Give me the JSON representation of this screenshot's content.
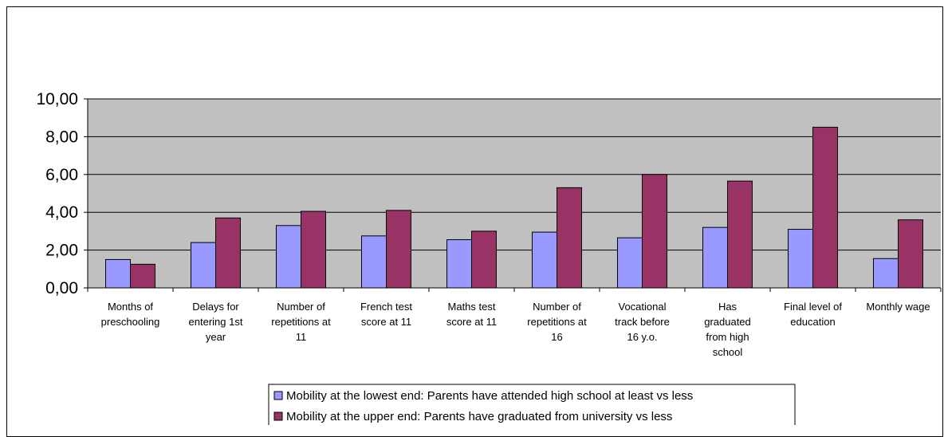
{
  "chart_data": {
    "type": "bar",
    "categories": [
      [
        "Months of",
        "preschooling"
      ],
      [
        "Delays for",
        "entering 1st",
        "year"
      ],
      [
        "Number of",
        "repetitions at",
        "11"
      ],
      [
        "French test",
        "score at 11"
      ],
      [
        "Maths test",
        "score at 11"
      ],
      [
        "Number of",
        "repetitions at",
        "16"
      ],
      [
        "Vocational",
        "track before",
        "16 y.o."
      ],
      [
        "Has",
        "graduated",
        "from high",
        "school"
      ],
      [
        "Final level of",
        "education"
      ],
      [
        "Monthly wage"
      ]
    ],
    "series": [
      {
        "name": "Mobility at the lowest end: Parents have attended high school at least vs less",
        "color": "#9999ff",
        "values": [
          1.5,
          2.4,
          3.3,
          2.75,
          2.55,
          2.95,
          2.65,
          3.2,
          3.1,
          1.55
        ]
      },
      {
        "name": "Mobility at the upper end: Parents have graduated from university vs less",
        "color": "#993366",
        "values": [
          1.25,
          3.7,
          4.05,
          4.1,
          3.0,
          5.3,
          6.0,
          5.65,
          8.5,
          3.6
        ]
      }
    ],
    "yticks": [
      "0,00",
      "2,00",
      "4,00",
      "6,00",
      "8,00",
      "10,00"
    ],
    "ylim": [
      0,
      10
    ],
    "grid": true,
    "plot_background": "#c0c0c0",
    "legend_position": "bottom"
  }
}
